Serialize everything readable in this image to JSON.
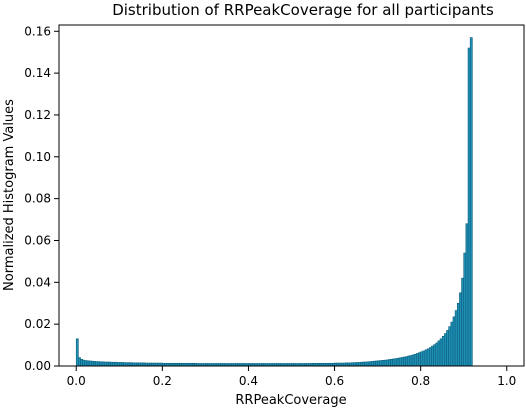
{
  "chart_data": {
    "type": "bar",
    "title": "Distribution of RRPeakCoverage for all participants",
    "xlabel": "RRPeakCoverage",
    "ylabel": "Normalized Histogram Values",
    "xlim": [
      -0.04,
      1.04
    ],
    "ylim": [
      0,
      0.163
    ],
    "xticks": [
      0.0,
      0.2,
      0.4,
      0.6,
      0.8,
      1.0
    ],
    "xtick_labels": [
      "0.0",
      "0.2",
      "0.4",
      "0.6",
      "0.8",
      "1.0"
    ],
    "yticks": [
      0.0,
      0.02,
      0.04,
      0.06,
      0.08,
      0.1,
      0.12,
      0.14,
      0.16
    ],
    "ytick_labels": [
      "0.00",
      "0.02",
      "0.04",
      "0.06",
      "0.08",
      "0.10",
      "0.12",
      "0.14",
      "0.16"
    ],
    "bin_width": 0.005,
    "bin_start": 0.0,
    "values": [
      0.013,
      0.004,
      0.0032,
      0.0028,
      0.0026,
      0.0025,
      0.0024,
      0.0023,
      0.0022,
      0.0021,
      0.0021,
      0.002,
      0.002,
      0.0019,
      0.0019,
      0.0019,
      0.0018,
      0.0018,
      0.0018,
      0.0017,
      0.0017,
      0.0017,
      0.0016,
      0.0016,
      0.0016,
      0.0016,
      0.0015,
      0.0015,
      0.0015,
      0.0015,
      0.0015,
      0.0015,
      0.0014,
      0.0014,
      0.0014,
      0.0014,
      0.0014,
      0.0014,
      0.0014,
      0.0014,
      0.0013,
      0.0013,
      0.0013,
      0.0013,
      0.0013,
      0.0013,
      0.0013,
      0.0013,
      0.0013,
      0.0013,
      0.0013,
      0.0013,
      0.0013,
      0.0013,
      0.0013,
      0.0013,
      0.0012,
      0.0012,
      0.0012,
      0.0012,
      0.0012,
      0.0012,
      0.0012,
      0.0012,
      0.0012,
      0.0012,
      0.0012,
      0.0012,
      0.0012,
      0.0012,
      0.0012,
      0.0012,
      0.0012,
      0.0012,
      0.0012,
      0.0012,
      0.0012,
      0.0012,
      0.0012,
      0.0012,
      0.0012,
      0.0012,
      0.0012,
      0.0012,
      0.0012,
      0.0012,
      0.0012,
      0.0012,
      0.0012,
      0.0012,
      0.0012,
      0.0012,
      0.0012,
      0.0012,
      0.0012,
      0.0012,
      0.0012,
      0.0012,
      0.0012,
      0.0012,
      0.0012,
      0.0012,
      0.0012,
      0.0012,
      0.0012,
      0.0012,
      0.0012,
      0.0012,
      0.0012,
      0.0013,
      0.0013,
      0.0013,
      0.0013,
      0.0013,
      0.0013,
      0.0013,
      0.0013,
      0.0013,
      0.0013,
      0.0013,
      0.0014,
      0.0014,
      0.0014,
      0.0014,
      0.0014,
      0.0015,
      0.0015,
      0.0015,
      0.0016,
      0.0016,
      0.0017,
      0.0017,
      0.0018,
      0.0019,
      0.0019,
      0.002,
      0.0021,
      0.0022,
      0.0023,
      0.0024,
      0.0025,
      0.0026,
      0.0027,
      0.0028,
      0.0029,
      0.0031,
      0.0032,
      0.0034,
      0.0035,
      0.0037,
      0.0039,
      0.0041,
      0.0043,
      0.0045,
      0.0048,
      0.005,
      0.0053,
      0.0056,
      0.006,
      0.0064,
      0.0068,
      0.0072,
      0.0077,
      0.0082,
      0.0088,
      0.0095,
      0.0102,
      0.011,
      0.012,
      0.013,
      0.0142,
      0.0155,
      0.017,
      0.0188,
      0.021,
      0.0235,
      0.0265,
      0.03,
      0.035,
      0.042,
      0.054,
      0.068,
      0.152,
      0.157
    ]
  }
}
